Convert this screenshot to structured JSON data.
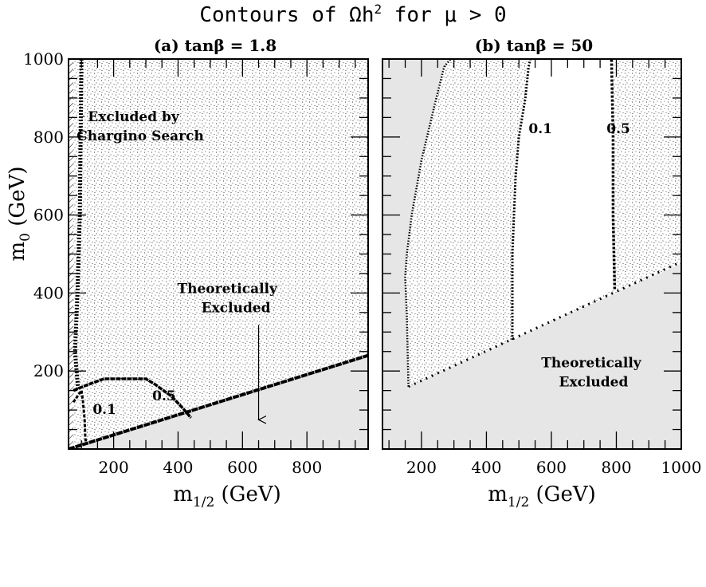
{
  "figure": {
    "title_prefix": "Contours of Ωh",
    "title_sup": "2",
    "title_suffix": " for μ > 0"
  },
  "chart_data": [
    {
      "type": "contour",
      "panel_title": "(a) tanβ = 1.8",
      "xlabel_main": "m",
      "xlabel_sub": "1/2",
      "xlabel_unit": " (GeV)",
      "ylabel_main": "m",
      "ylabel_sub": "0",
      "ylabel_unit": " (GeV)",
      "xlim": [
        60,
        990
      ],
      "ylim": [
        0,
        1000
      ],
      "xticks": [
        200,
        400,
        600,
        800
      ],
      "yticks": [
        200,
        400,
        600,
        800,
        1000
      ],
      "theory_excluded_boundary": [
        [
          60,
          0
        ],
        [
          990,
          240
        ]
      ],
      "chargino_excluded_xmax": 75,
      "contours": [
        {
          "label": "0.1",
          "label_at": [
            135,
            90
          ],
          "points": [
            [
              75,
              120
            ],
            [
              100,
              150
            ],
            [
              105,
              120
            ],
            [
              110,
              75
            ],
            [
              112,
              30
            ],
            [
              115,
              10
            ]
          ]
        },
        {
          "label": "0.5",
          "label_at": [
            320,
            125
          ],
          "points": [
            [
              75,
              150
            ],
            [
              120,
              165
            ],
            [
              170,
              180
            ],
            [
              250,
              180
            ],
            [
              300,
              180
            ],
            [
              330,
              165
            ],
            [
              380,
              135
            ],
            [
              420,
              100
            ],
            [
              440,
              80
            ]
          ]
        }
      ],
      "annotations": [
        {
          "text_lines": [
            "Excluded by",
            "Chargino Search"
          ],
          "at": [
            120,
            840
          ]
        },
        {
          "text_lines": [
            "Theoretically",
            "Excluded"
          ],
          "at": [
            560,
            400
          ],
          "arrow_to": [
            650,
            75
          ]
        }
      ]
    },
    {
      "type": "contour",
      "panel_title": "(b) tanβ = 50",
      "xlabel_main": "m",
      "xlabel_sub": "1/2",
      "xlabel_unit": " (GeV)",
      "xlim": [
        80,
        1000
      ],
      "ylim": [
        0,
        1000
      ],
      "xticks": [
        200,
        400,
        600,
        800,
        1000
      ],
      "yticks": [
        200,
        400,
        600,
        800,
        1000
      ],
      "theory_excluded_boundary": [
        [
          160,
          160
        ],
        [
          1000,
          480
        ]
      ],
      "contours": [
        {
          "label": "",
          "points": [
            [
              160,
              160
            ],
            [
              155,
              340
            ],
            [
              150,
              440
            ],
            [
              155,
              500
            ],
            [
              170,
              600
            ],
            [
              200,
              740
            ],
            [
              240,
              880
            ],
            [
              270,
              980
            ],
            [
              290,
              1000
            ]
          ]
        },
        {
          "label": "0.1",
          "label_at": [
            530,
            810
          ],
          "points": [
            [
              480,
              280
            ],
            [
              480,
              500
            ],
            [
              490,
              700
            ],
            [
              500,
              800
            ],
            [
              520,
              900
            ],
            [
              530,
              980
            ],
            [
              535,
              1000
            ]
          ]
        },
        {
          "label": "0.5",
          "label_at": [
            770,
            810
          ],
          "points": [
            [
              795,
              410
            ],
            [
              790,
              600
            ],
            [
              790,
              800
            ],
            [
              785,
              1000
            ]
          ]
        }
      ],
      "annotations": [
        {
          "text_lines": [
            "Theoretically",
            "Excluded"
          ],
          "at": [
            730,
            210
          ]
        }
      ]
    }
  ]
}
